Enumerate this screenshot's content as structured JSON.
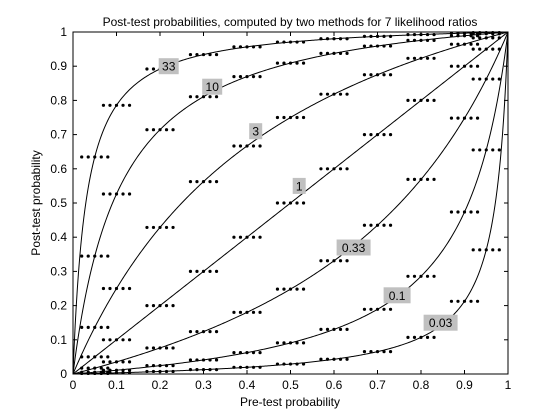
{
  "chart_data": {
    "type": "line",
    "title": "Post-test probabilities, computed by two methods for 7 likelihood ratios",
    "xlabel": "Pre-test probability",
    "ylabel": "Post-test probability",
    "xlim": [
      0,
      1
    ],
    "ylim": [
      0,
      1
    ],
    "xticks": [
      0,
      0.1,
      0.2,
      0.3,
      0.4,
      0.5,
      0.6,
      0.7,
      0.8,
      0.9,
      1
    ],
    "yticks": [
      0,
      0.1,
      0.2,
      0.3,
      0.4,
      0.5,
      0.6,
      0.7,
      0.8,
      0.9,
      1
    ],
    "xtick_labels": [
      "0",
      "0.1",
      "0.2",
      "0.3",
      "0.4",
      "0.5",
      "0.6",
      "0.7",
      "0.8",
      "0.9",
      "1"
    ],
    "ytick_labels": [
      "0",
      "0.1",
      "0.2",
      "0.3",
      "0.4",
      "0.5",
      "0.6",
      "0.7",
      "0.8",
      "0.9",
      "1"
    ],
    "grid": false,
    "legend": "none",
    "line_color": "#000000",
    "marker_color": "#000000",
    "label_background": "#c0c0c0",
    "curves": [
      {
        "label": "33",
        "likelihood_ratio": 33,
        "label_at": [
          0.22,
          0.9
        ]
      },
      {
        "label": "10",
        "likelihood_ratio": 10,
        "label_at": [
          0.32,
          0.84
        ]
      },
      {
        "label": "3",
        "likelihood_ratio": 3,
        "label_at": [
          0.42,
          0.71
        ]
      },
      {
        "label": "1",
        "likelihood_ratio": 1,
        "label_at": [
          0.52,
          0.55
        ]
      },
      {
        "label": "0.33",
        "likelihood_ratio": 0.33,
        "label_at": [
          0.645,
          0.37
        ]
      },
      {
        "label": "0.1",
        "likelihood_ratio": 0.1,
        "label_at": [
          0.745,
          0.23
        ]
      },
      {
        "label": "0.03",
        "likelihood_ratio": 0.03,
        "label_at": [
          0.845,
          0.15
        ]
      }
    ],
    "markers": {
      "pretest_points": [
        0.05,
        0.1,
        0.2,
        0.3,
        0.4,
        0.5,
        0.6,
        0.7,
        0.8,
        0.9,
        0.95
      ],
      "dots_per_group": 5,
      "group_half_width": 0.03
    }
  }
}
